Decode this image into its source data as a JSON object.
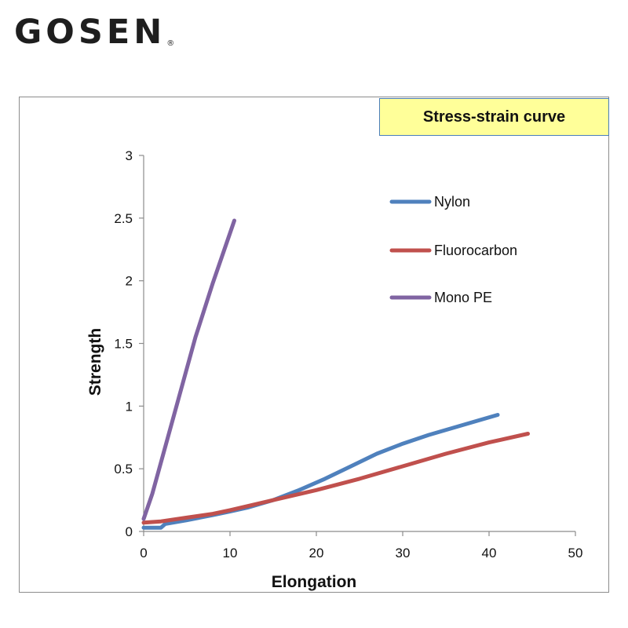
{
  "brand": {
    "name": "GOSEN",
    "trademark": "®"
  },
  "chart_data": {
    "type": "line",
    "title": "Stress-strain curve",
    "xlabel": "Elongation",
    "ylabel": "Strength",
    "xlim": [
      0,
      50
    ],
    "ylim": [
      0,
      3
    ],
    "xticks": [
      0,
      10,
      20,
      30,
      40,
      50
    ],
    "yticks": [
      0,
      0.5,
      1,
      1.5,
      2,
      2.5,
      3
    ],
    "ytick_labels": [
      "0",
      "0.5",
      "1",
      "1.5",
      "2",
      "2.5",
      "3"
    ],
    "grid": false,
    "legend_position": "right",
    "series": [
      {
        "name": "Nylon",
        "color": "#4f81bd",
        "x": [
          0,
          2,
          2.5,
          5,
          8,
          10,
          12,
          15,
          18,
          21,
          24,
          27,
          30,
          33,
          36,
          39,
          41
        ],
        "y": [
          0.03,
          0.03,
          0.06,
          0.09,
          0.13,
          0.16,
          0.19,
          0.25,
          0.33,
          0.42,
          0.52,
          0.62,
          0.7,
          0.77,
          0.83,
          0.89,
          0.93
        ]
      },
      {
        "name": "Fluorocarbon",
        "color": "#c0504d",
        "x": [
          0,
          2,
          5,
          8,
          10,
          15,
          20,
          25,
          30,
          35,
          40,
          44.5
        ],
        "y": [
          0.07,
          0.08,
          0.11,
          0.14,
          0.17,
          0.25,
          0.33,
          0.42,
          0.52,
          0.62,
          0.71,
          0.78
        ]
      },
      {
        "name": "Mono PE",
        "color": "#8064a2",
        "x": [
          0,
          1,
          2,
          4,
          6,
          8,
          10,
          10.5
        ],
        "y": [
          0.1,
          0.3,
          0.55,
          1.05,
          1.55,
          1.98,
          2.38,
          2.48
        ]
      }
    ]
  }
}
